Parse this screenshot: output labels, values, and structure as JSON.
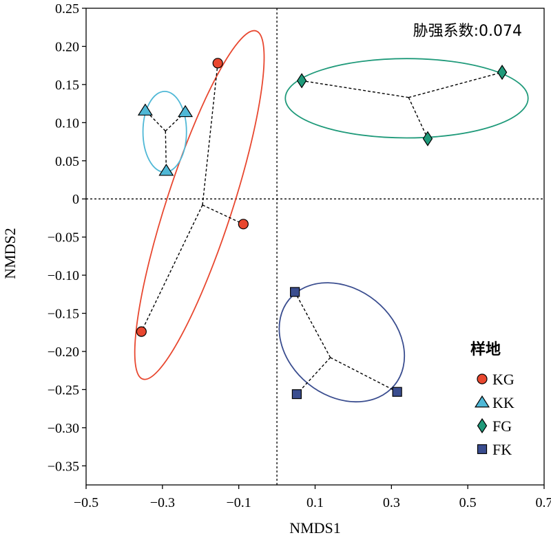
{
  "chart_data": {
    "type": "scatter",
    "title": "",
    "xlabel": "NMDS1",
    "ylabel": "NMDS2",
    "xlim": [
      -0.5,
      0.7
    ],
    "ylim": [
      -0.375,
      0.25
    ],
    "x_ticks": [
      "−0.5",
      "−0.3",
      "−0.1",
      "0.1",
      "0.3",
      "0.5",
      "0.7"
    ],
    "x_tick_values": [
      -0.5,
      -0.3,
      -0.1,
      0.1,
      0.3,
      0.5,
      0.7
    ],
    "y_ticks": [
      "0.25",
      "0.20",
      "0.15",
      "0.10",
      "0.05",
      "0",
      "−0.05",
      "−0.10",
      "−0.15",
      "−0.20",
      "−0.25",
      "−0.30",
      "−0.35"
    ],
    "y_tick_values": [
      0.25,
      0.2,
      0.15,
      0.1,
      0.05,
      0,
      -0.05,
      -0.1,
      -0.15,
      -0.2,
      -0.25,
      -0.3,
      -0.35
    ],
    "annotation": "胁强系数:0.074",
    "reference_lines": {
      "x": 0,
      "y": 0,
      "style": "dotted"
    },
    "legend": {
      "title": "样地",
      "position": "bottom-right"
    },
    "series": [
      {
        "name": "KG",
        "marker": "circle",
        "color": "#e8472f",
        "points": [
          [
            -0.155,
            0.178
          ],
          [
            -0.088,
            -0.033
          ],
          [
            -0.355,
            -0.174
          ]
        ],
        "centroid": [
          -0.195,
          -0.008
        ],
        "ellipse": {
          "center": [
            -0.203,
            -0.008
          ],
          "rx": 0.086,
          "ry": 0.24,
          "rotation_deg": 18,
          "color": "#e8472f"
        }
      },
      {
        "name": "KK",
        "marker": "triangle",
        "color": "#4fb8d6",
        "points": [
          [
            -0.345,
            0.116
          ],
          [
            -0.24,
            0.114
          ],
          [
            -0.29,
            0.037
          ]
        ],
        "centroid": [
          -0.292,
          0.089
        ],
        "ellipse": {
          "center": [
            -0.294,
            0.088
          ],
          "rx": 0.057,
          "ry": 0.053,
          "rotation_deg": 0,
          "color": "#4fb8d6"
        }
      },
      {
        "name": "FG",
        "marker": "diamond",
        "color": "#1f9a7a",
        "points": [
          [
            0.065,
            0.155
          ],
          [
            0.59,
            0.166
          ],
          [
            0.395,
            0.079
          ]
        ],
        "centroid": [
          0.345,
          0.133
        ],
        "ellipse": {
          "center": [
            0.34,
            0.132
          ],
          "rx": 0.318,
          "ry": 0.052,
          "rotation_deg": 0,
          "color": "#1f9a7a"
        }
      },
      {
        "name": "FK",
        "marker": "square",
        "color": "#3a4d8f",
        "points": [
          [
            0.047,
            -0.122
          ],
          [
            0.052,
            -0.256
          ],
          [
            0.315,
            -0.253
          ]
        ],
        "centroid": [
          0.14,
          -0.208
        ],
        "ellipse": {
          "center": [
            0.17,
            -0.188
          ],
          "rx": 0.178,
          "ry": 0.07,
          "rotation_deg": 39,
          "color": "#3a4d8f"
        }
      }
    ]
  }
}
